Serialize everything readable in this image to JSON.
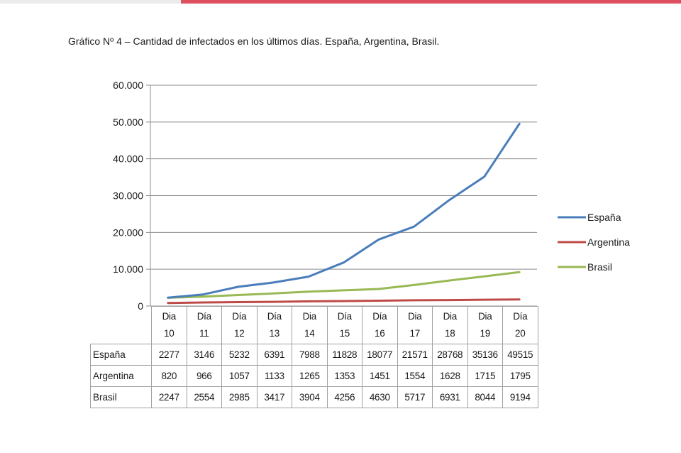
{
  "page": {
    "title": "Gráfico Nº 4 – Cantidad de infectados en los últimos días. España, Argentina, Brasil."
  },
  "chart_data": {
    "type": "line",
    "title": "Gráfico Nº 4 – Cantidad de infectados en los últimos días. España, Argentina, Brasil.",
    "xlabel": "",
    "ylabel": "",
    "ylim": [
      0,
      60000
    ],
    "yticks": [
      0,
      10000,
      20000,
      30000,
      40000,
      50000,
      60000
    ],
    "ytick_labels": [
      "0",
      "10.000",
      "20.000",
      "30.000",
      "40.000",
      "50.000",
      "60.000"
    ],
    "grid": true,
    "legend_position": "right",
    "categories": [
      {
        "top": "Dia",
        "bottom": "10"
      },
      {
        "top": "Día",
        "bottom": "11"
      },
      {
        "top": "Día",
        "bottom": "12"
      },
      {
        "top": "Día",
        "bottom": "13"
      },
      {
        "top": "Dia",
        "bottom": "14"
      },
      {
        "top": "Día",
        "bottom": "15"
      },
      {
        "top": "Día",
        "bottom": "16"
      },
      {
        "top": "Dia",
        "bottom": "17"
      },
      {
        "top": "Dia",
        "bottom": "18"
      },
      {
        "top": "Dia",
        "bottom": "19"
      },
      {
        "top": "Día",
        "bottom": "20"
      }
    ],
    "series": [
      {
        "name": "España",
        "color": "#4a7ebb",
        "values": [
          2277,
          3146,
          5232,
          6391,
          7988,
          11828,
          18077,
          21571,
          28768,
          35136,
          49515
        ]
      },
      {
        "name": "Argentina",
        "color": "#be4b48",
        "values": [
          820,
          966,
          1057,
          1133,
          1265,
          1353,
          1451,
          1554,
          1628,
          1715,
          1795
        ]
      },
      {
        "name": "Brasil",
        "color": "#98b954",
        "values": [
          2247,
          2554,
          2985,
          3417,
          3904,
          4256,
          4630,
          5717,
          6931,
          8044,
          9194
        ]
      }
    ]
  }
}
